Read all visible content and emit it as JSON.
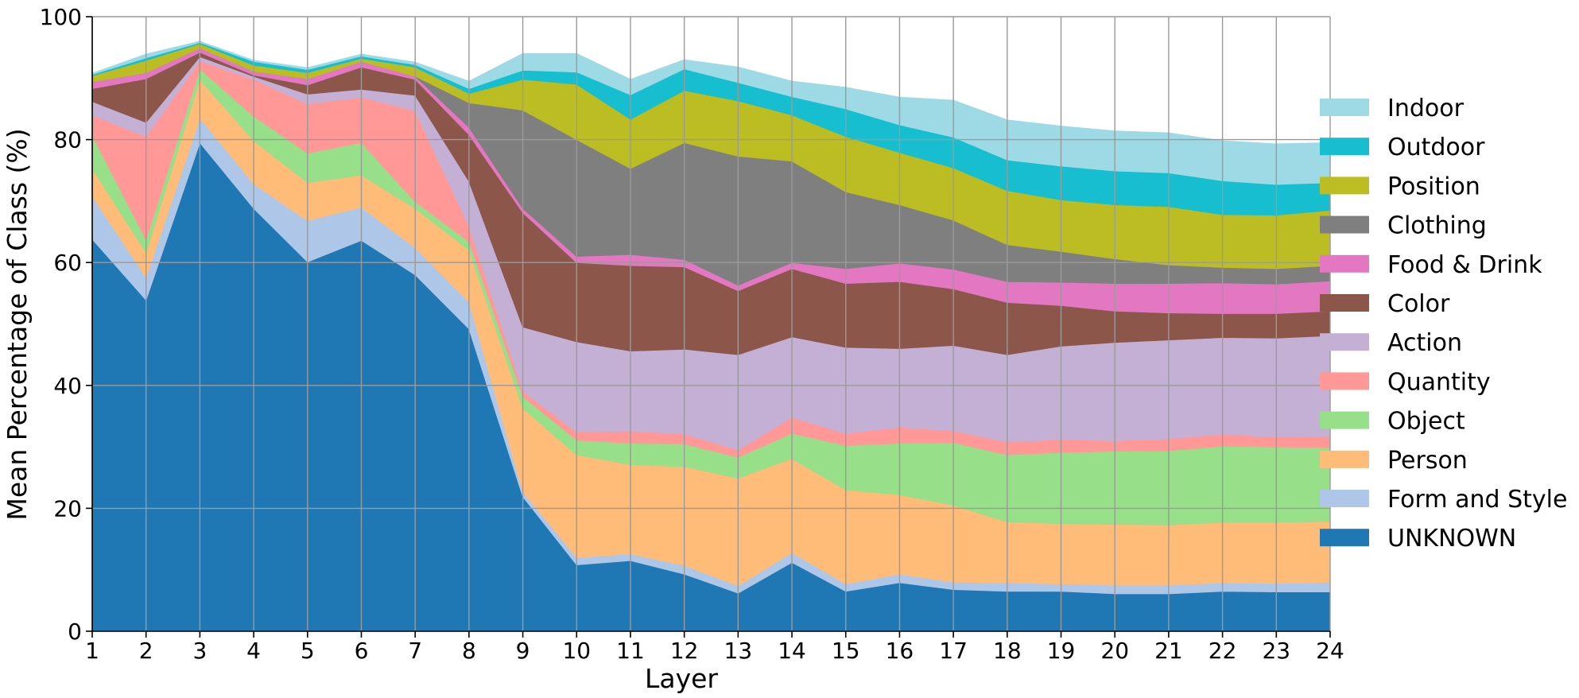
{
  "chart_data": {
    "type": "area",
    "stacked": true,
    "xlabel": "Layer",
    "ylabel": "Mean Percentage of Class (%)",
    "x": [
      1,
      2,
      3,
      4,
      5,
      6,
      7,
      8,
      9,
      10,
      11,
      12,
      13,
      14,
      15,
      16,
      17,
      18,
      19,
      20,
      21,
      22,
      23,
      24
    ],
    "xlim": [
      1,
      24
    ],
    "ylim": [
      0,
      100
    ],
    "yticks": [
      0,
      20,
      40,
      60,
      80,
      100
    ],
    "grid": true,
    "legend_position": "right",
    "series": [
      {
        "name": "UNKNOWN",
        "color": "#1f77b4",
        "values": [
          63.8,
          53.9,
          79.5,
          68.8,
          60.1,
          63.6,
          58.0,
          49.2,
          21.9,
          10.8,
          11.5,
          9.3,
          6.2,
          11.2,
          6.5,
          7.9,
          6.8,
          6.5,
          6.5,
          6.1,
          6.1,
          6.5,
          6.4,
          6.4
        ]
      },
      {
        "name": "Form and Style",
        "color": "#aec7e8",
        "values": [
          7.0,
          3.7,
          4.0,
          4.0,
          6.7,
          5.4,
          4.4,
          4.4,
          0.8,
          1.2,
          1.1,
          1.4,
          1.2,
          1.6,
          1.2,
          1.4,
          1.2,
          1.4,
          1.2,
          1.4,
          1.4,
          1.4,
          1.4,
          1.6
        ]
      },
      {
        "name": "Person",
        "color": "#ffbb78",
        "values": [
          4.5,
          4.0,
          6.3,
          7.0,
          6.2,
          5.2,
          6.4,
          8.4,
          13.6,
          16.7,
          14.5,
          16.1,
          17.5,
          15.3,
          15.3,
          12.9,
          12.5,
          9.9,
          9.8,
          9.9,
          9.8,
          9.8,
          9.9,
          9.9
        ]
      },
      {
        "name": "Object",
        "color": "#98df8a",
        "values": [
          5.4,
          2.1,
          1.7,
          4.0,
          4.8,
          5.3,
          1.1,
          1.4,
          1.9,
          2.4,
          3.5,
          3.7,
          3.4,
          4.1,
          7.2,
          8.4,
          10.2,
          10.9,
          11.6,
          11.9,
          12.1,
          12.4,
          12.3,
          12.0
        ]
      },
      {
        "name": "Quantity",
        "color": "#ff9896",
        "values": [
          3.3,
          16.8,
          1.3,
          6.0,
          8.0,
          7.4,
          14.8,
          2.5,
          0.9,
          1.3,
          2.0,
          1.6,
          1.2,
          2.6,
          2.0,
          2.6,
          1.9,
          2.1,
          2.1,
          1.7,
          1.9,
          2.0,
          1.6,
          1.8
        ]
      },
      {
        "name": "Action",
        "color": "#c5b0d5",
        "values": [
          2.2,
          2.3,
          0.7,
          0.5,
          1.6,
          1.3,
          2.5,
          7.3,
          10.4,
          14.7,
          13.0,
          13.8,
          15.5,
          13.1,
          14.0,
          12.8,
          13.9,
          14.2,
          15.2,
          16.0,
          16.1,
          15.7,
          16.1,
          16.4
        ]
      },
      {
        "name": "Color",
        "color": "#8c564b",
        "values": [
          2.1,
          7.1,
          0.7,
          0.2,
          1.5,
          3.6,
          2.6,
          7.6,
          18.6,
          12.9,
          13.9,
          13.4,
          10.4,
          11.1,
          10.4,
          10.9,
          9.2,
          8.5,
          6.6,
          5.1,
          4.4,
          3.9,
          4.0,
          4.0
        ]
      },
      {
        "name": "Food & Drink",
        "color": "#e377c2",
        "values": [
          1.1,
          1.0,
          0.7,
          0.6,
          1.0,
          0.9,
          0.5,
          1.2,
          0.7,
          1.0,
          1.8,
          1.2,
          0.9,
          1.0,
          2.4,
          3.0,
          3.2,
          3.4,
          3.8,
          4.5,
          4.8,
          5.0,
          4.8,
          4.9
        ]
      },
      {
        "name": "Clothing",
        "color": "#7f7f7f",
        "values": [
          0.0,
          0.0,
          0.0,
          0.0,
          0.0,
          0.0,
          0.0,
          4.0,
          16.0,
          19.0,
          14.0,
          19.0,
          21.0,
          16.5,
          12.5,
          9.5,
          8.0,
          6.0,
          5.0,
          4.0,
          3.0,
          2.5,
          2.5,
          2.5
        ]
      },
      {
        "name": "Position",
        "color": "#bcbd22",
        "values": [
          1.0,
          2.0,
          0.7,
          1.0,
          1.0,
          0.5,
          1.5,
          1.5,
          5.0,
          9.0,
          8.0,
          8.5,
          9.0,
          7.5,
          9.0,
          8.5,
          8.5,
          8.8,
          8.4,
          8.8,
          9.5,
          8.6,
          8.7,
          9.0
        ]
      },
      {
        "name": "Outdoor",
        "color": "#17becf",
        "values": [
          0.2,
          0.4,
          0.2,
          0.6,
          0.5,
          0.4,
          0.4,
          0.8,
          1.5,
          2.0,
          4.0,
          3.5,
          3.0,
          3.0,
          4.5,
          4.5,
          5.0,
          5.0,
          5.5,
          5.5,
          5.5,
          5.5,
          5.0,
          4.5
        ]
      },
      {
        "name": "Indoor",
        "color": "#9edae5",
        "values": [
          0.2,
          0.6,
          0.2,
          0.2,
          0.3,
          0.3,
          0.4,
          1.2,
          2.7,
          3.0,
          2.5,
          1.5,
          2.5,
          2.5,
          3.5,
          4.5,
          6.0,
          6.5,
          6.5,
          6.5,
          6.5,
          6.5,
          6.6,
          6.5
        ]
      }
    ]
  }
}
